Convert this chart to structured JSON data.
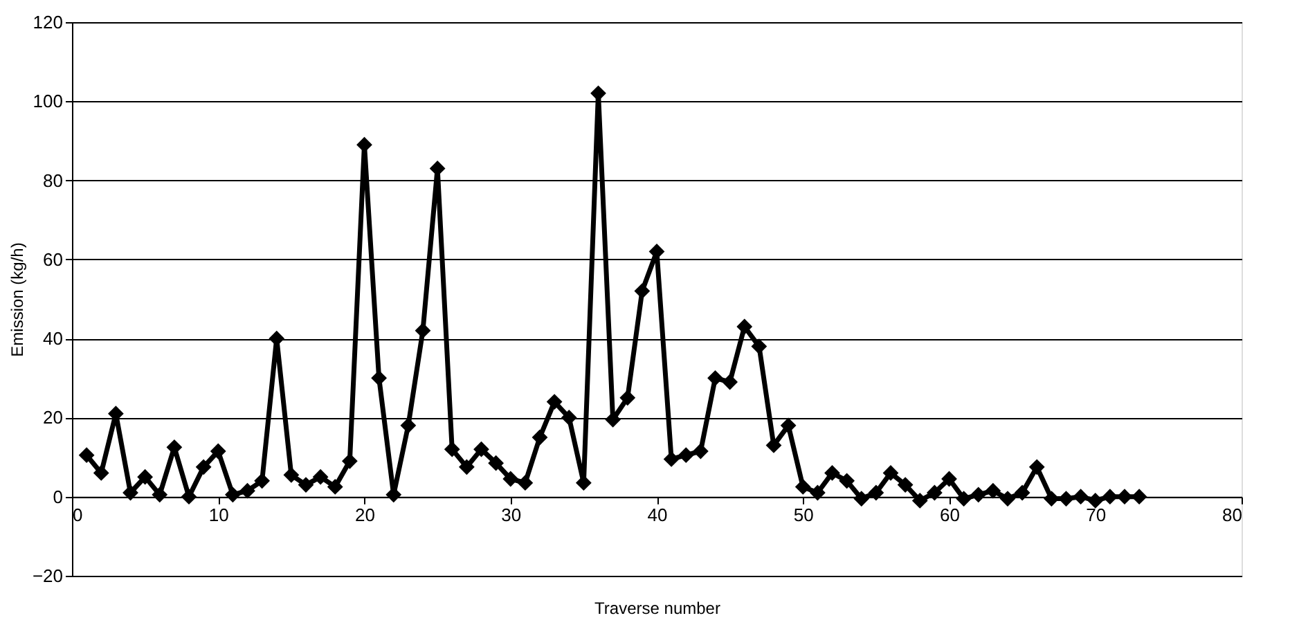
{
  "chart_data": {
    "type": "line",
    "xlabel": "Traverse number",
    "ylabel": "Emission (kg/h)",
    "x": [
      1,
      2,
      3,
      4,
      5,
      6,
      7,
      8,
      9,
      10,
      11,
      12,
      13,
      14,
      15,
      16,
      17,
      18,
      19,
      20,
      21,
      22,
      23,
      24,
      25,
      26,
      27,
      28,
      29,
      30,
      31,
      32,
      33,
      34,
      35,
      36,
      37,
      38,
      39,
      40,
      41,
      42,
      43,
      44,
      45,
      46,
      47,
      48,
      49,
      50,
      51,
      52,
      53,
      54,
      55,
      56,
      57,
      58,
      59,
      60,
      61,
      62,
      63,
      64,
      65,
      66,
      67,
      68,
      69,
      70,
      71,
      72,
      73
    ],
    "series": [
      {
        "color": "#000000",
        "values": [
          10.5,
          6,
          21,
          1,
          5,
          0.5,
          12.5,
          0,
          7.5,
          11.5,
          0.5,
          1.5,
          4,
          40,
          5.5,
          3,
          5,
          2.5,
          9,
          89,
          30,
          0.5,
          18,
          42,
          83,
          12,
          7.5,
          12,
          8.5,
          4.5,
          3.5,
          15,
          24,
          20,
          3.5,
          102,
          19.5,
          25,
          52,
          62,
          9.5,
          10.5,
          11.5,
          30,
          29,
          43,
          38,
          13,
          18,
          2.5,
          1,
          6,
          4,
          -0.5,
          1,
          6,
          3,
          -1,
          1,
          4.5,
          -0.5,
          0.5,
          1.5,
          -0.5,
          1,
          7.5,
          -0.5,
          -0.5,
          0,
          -1,
          0,
          0,
          0
        ]
      }
    ],
    "xlim": [
      0,
      80
    ],
    "xticks": [
      0,
      10,
      20,
      30,
      40,
      50,
      60,
      70,
      80
    ],
    "ylim": [
      -20,
      120
    ],
    "yticks": [
      -20,
      0,
      20,
      40,
      60,
      80,
      100,
      120
    ],
    "grid": "y",
    "marker": "diamond",
    "line_style": "solid"
  }
}
